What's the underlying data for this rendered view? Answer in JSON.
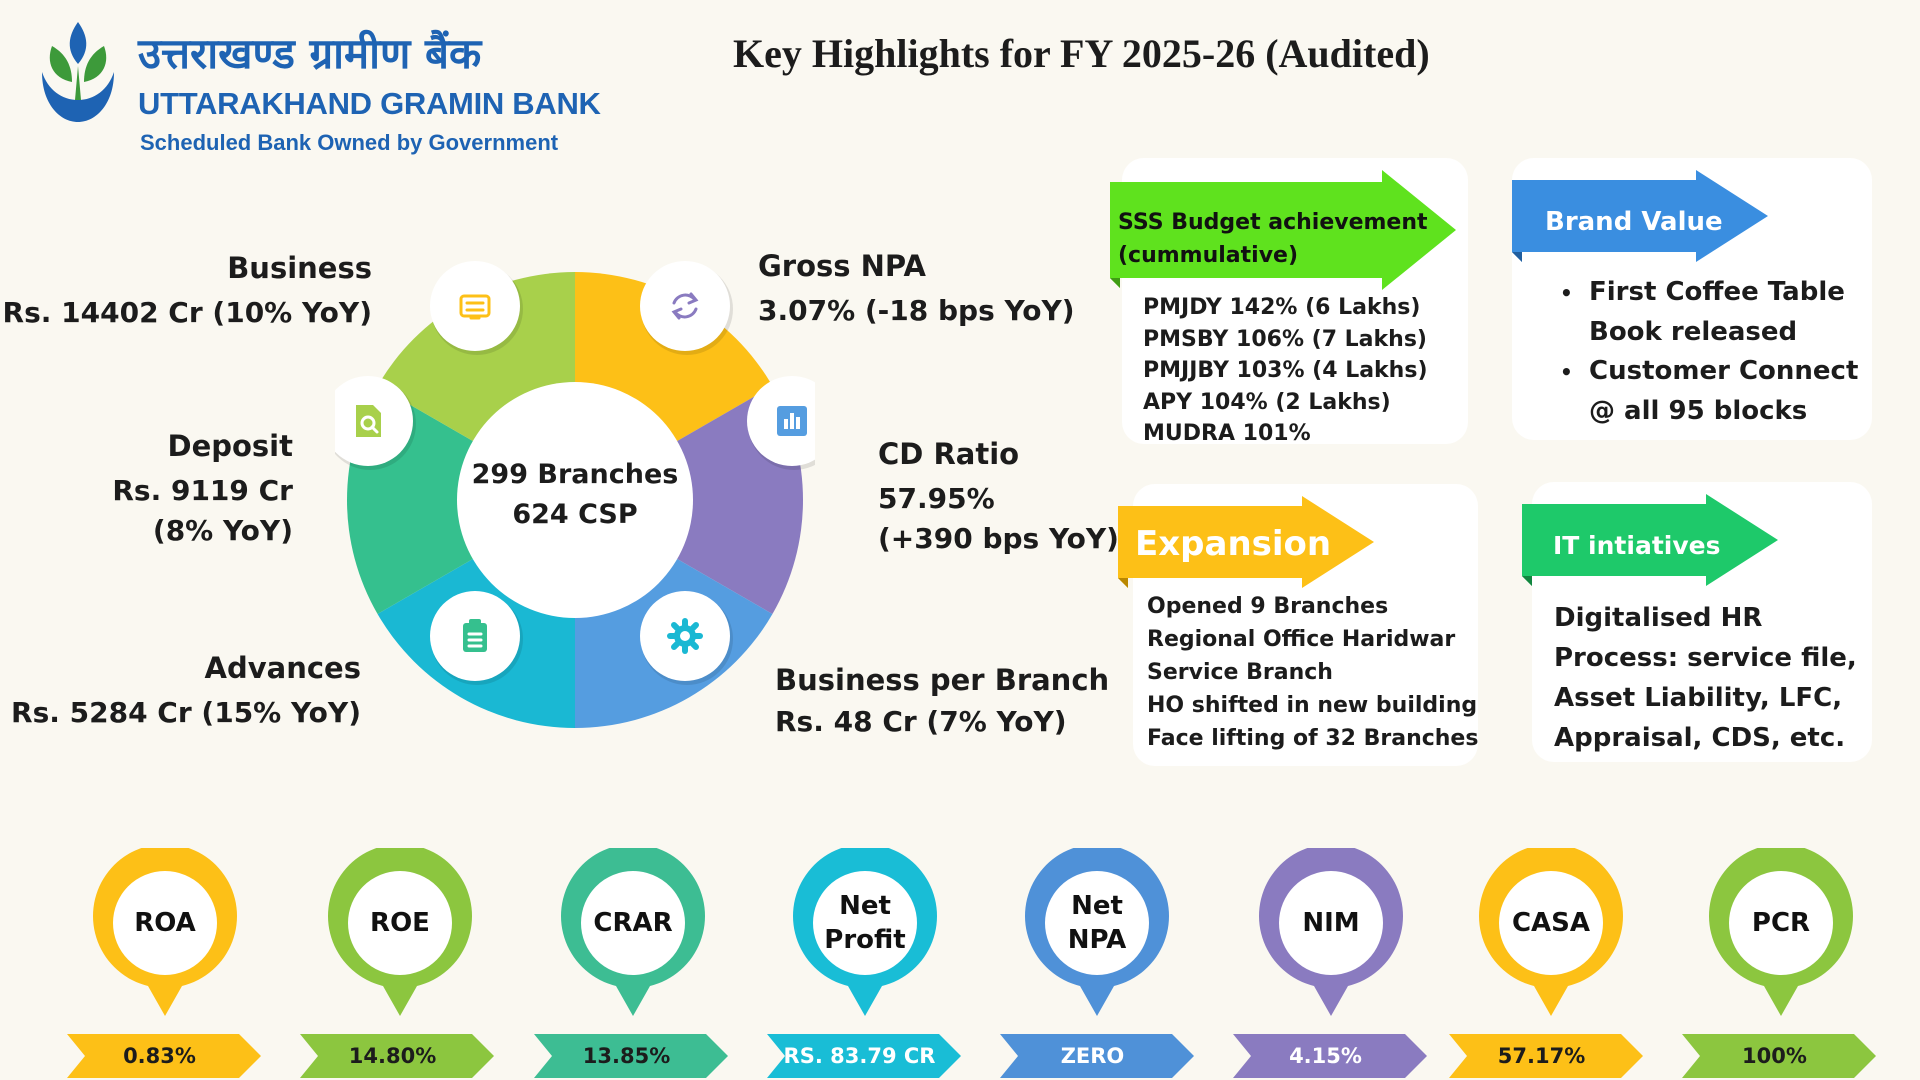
{
  "header": {
    "bank_name_hindi": "उत्तराखण्ड ग्रामीण बैंक",
    "bank_name_english": "UTTARAKHAND GRAMIN BANK",
    "tagline": "Scheduled Bank Owned by Government",
    "title": "Key Highlights for FY 2025-26 (Audited)"
  },
  "donut": {
    "center_line1": "299 Branches",
    "center_line2": "624 CSP",
    "segments": [
      {
        "title": "Business",
        "line1": "Rs. 14402 Cr (10% YoY)",
        "line2": "",
        "icon": "document-list-icon",
        "color": "#fdc017"
      },
      {
        "title": "Gross NPA",
        "line1": "3.07%  (-18 bps YoY)",
        "line2": "",
        "icon": "refresh-arrows-icon",
        "color": "#8a7bc0"
      },
      {
        "title": "CD Ratio",
        "line1": "57.95%",
        "line2": "(+390 bps YoY)",
        "icon": "bar-chart-icon",
        "color": "#559de0"
      },
      {
        "title": "Business per Branch",
        "line1": "Rs. 48 Cr (7% YoY)",
        "line2": "",
        "icon": "gear-icon",
        "color": "#1ab8d3"
      },
      {
        "title": "Advances",
        "line1": "Rs. 5284 Cr (15% YoY)",
        "line2": "",
        "icon": "clipboard-icon",
        "color": "#35c08e"
      },
      {
        "title": "Deposit",
        "line1": "Rs. 9119 Cr",
        "line2": "(8% YoY)",
        "icon": "file-search-icon",
        "color": "#a8d04b"
      }
    ]
  },
  "cards": {
    "sss": {
      "banner": "SSS Budget achievement (cummulative)",
      "banner_line1": "SSS Budget achievement",
      "banner_line2": "(cummulative)",
      "banner_color": "#5fe21e",
      "items": [
        "PMJDY 142% (6 Lakhs)",
        "PMSBY 106% (7 Lakhs)",
        "PMJJBY 103% (4 Lakhs)",
        "APY 104% (2 Lakhs)",
        "MUDRA  101%"
      ]
    },
    "brand": {
      "banner": "Brand Value",
      "banner_color": "#3a8ee0",
      "bullets": [
        {
          "line1": "First Coffee Table",
          "line2": "Book released"
        },
        {
          "line1": "Customer Connect",
          "line2": "@ all 95 blocks"
        }
      ]
    },
    "expansion": {
      "banner": "Expansion",
      "banner_color": "#fdc017",
      "items": [
        "Opened 9 Branches",
        "Regional Office Haridwar",
        "Service Branch",
        "HO shifted in new building",
        "Face lifting of 32 Branches"
      ]
    },
    "it": {
      "banner": "IT intiatives",
      "banner_color": "#1ec96a",
      "lines": [
        "Digitalised HR",
        "Process: service file,",
        "Asset Liability, LFC,",
        "Appraisal, CDS, etc."
      ]
    }
  },
  "kpis": [
    {
      "label": "ROA",
      "value": "0.83%",
      "color": "#fdc017",
      "value_color": "#1c1c1c"
    },
    {
      "label": "ROE",
      "value": "14.80%",
      "color": "#8cc63f",
      "value_color": "#1c1c1c"
    },
    {
      "label": "CRAR",
      "value": "13.85%",
      "color": "#3dbd93",
      "value_color": "#1c1c1c"
    },
    {
      "label": "Net Profit",
      "value": "RS. 83.79 CR",
      "color": "#19bdd6",
      "value_color": "#ffffff"
    },
    {
      "label": "Net NPA",
      "value": "ZERO",
      "color": "#4f91d8",
      "value_color": "#ffffff"
    },
    {
      "label": "NIM",
      "value": "4.15%",
      "color": "#8a7bc0",
      "value_color": "#ffffff"
    },
    {
      "label": "CASA",
      "value": "57.17%",
      "color": "#fdc017",
      "value_color": "#1c1c1c"
    },
    {
      "label": "PCR",
      "value": "100%",
      "color": "#8cc63f",
      "value_color": "#1c1c1c"
    }
  ]
}
